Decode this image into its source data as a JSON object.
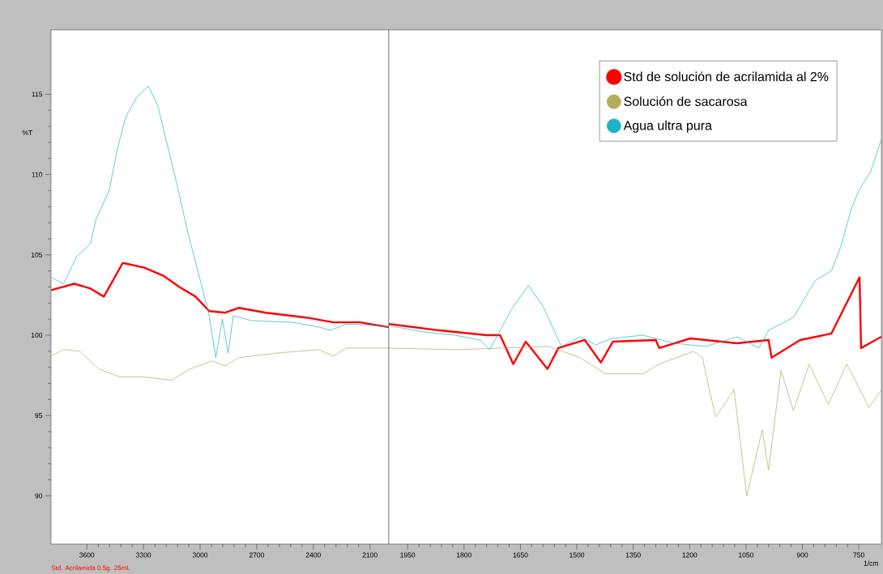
{
  "chart_data": [
    {
      "type": "line",
      "ylabel": "%T",
      "xlim": [
        3790,
        2000
      ],
      "xticks": [
        3600,
        3300,
        3000,
        2700,
        2400,
        2100
      ],
      "ylim": [
        87,
        119
      ],
      "yticks": [
        90,
        95,
        100,
        105,
        110,
        115
      ],
      "annotations": [
        "Std. Acrilamida 0.5g. 25mL"
      ],
      "series": [
        {
          "color": "#ff0000",
          "x": [
            3790,
            3667,
            3581,
            3510,
            3410,
            3295,
            3195,
            3110,
            3024,
            2952,
            2867,
            2796,
            2652,
            2438,
            2295,
            2154,
            2000
          ],
          "values": [
            102.8,
            103.2,
            102.9,
            102.4,
            104.5,
            104.2,
            103.7,
            103.0,
            102.4,
            101.5,
            101.4,
            101.7,
            101.4,
            101.1,
            100.8,
            100.8,
            100.5
          ]
        },
        {
          "color": "#b5ab5a",
          "x": [
            3790,
            3724,
            3638,
            3538,
            3424,
            3295,
            3152,
            3053,
            2938,
            2867,
            2796,
            2582,
            2368,
            2295,
            2224,
            2000
          ],
          "values": [
            98.7,
            99.1,
            99.0,
            97.9,
            97.4,
            97.4,
            97.2,
            97.9,
            98.4,
            98.1,
            98.6,
            98.9,
            99.1,
            98.7,
            99.2,
            99.2
          ]
        },
        {
          "color": "#1fb3c8",
          "x": [
            3790,
            3724,
            3654,
            3581,
            3552,
            3482,
            3440,
            3397,
            3337,
            3274,
            3225,
            3183,
            3123,
            3067,
            2995,
            2952,
            2917,
            2882,
            2852,
            2824,
            2724,
            2510,
            2368,
            2310,
            2224,
            2081,
            2000
          ],
          "values": [
            103.6,
            103.2,
            104.9,
            105.7,
            107.2,
            109.0,
            111.5,
            113.5,
            114.8,
            115.5,
            114.3,
            112.3,
            109.4,
            106.5,
            103.2,
            101.2,
            98.6,
            101.0,
            98.9,
            101.2,
            100.9,
            100.8,
            100.5,
            100.3,
            100.7,
            100.6,
            100.5
          ]
        }
      ]
    },
    {
      "type": "line",
      "xlabel": "1/cm",
      "xlim": [
        2000,
        690
      ],
      "xticks": [
        1950,
        1800,
        1650,
        1500,
        1350,
        1200,
        1050,
        900,
        750
      ],
      "ylim": [
        87,
        119
      ],
      "yticks": [
        90,
        95,
        100,
        105,
        110,
        115
      ],
      "tick_labels": "x",
      "legend": "top right",
      "series": [
        {
          "name": "Std de solución de acrilamida al 2%",
          "color": "#ff0000",
          "x": [
            2000,
            1866,
            1740,
            1704,
            1669,
            1636,
            1578,
            1549,
            1479,
            1436,
            1404,
            1290,
            1281,
            1198,
            1074,
            990,
            982,
            906,
            823,
            748,
            744,
            690
          ],
          "values": [
            100.7,
            100.3,
            100.0,
            100.0,
            98.2,
            99.6,
            97.9,
            99.2,
            99.7,
            98.3,
            99.6,
            99.7,
            99.2,
            99.8,
            99.5,
            99.7,
            98.6,
            99.7,
            100.1,
            103.6,
            99.2,
            99.9
          ]
        },
        {
          "name": "Solución de sacarosa",
          "color": "#b5ab5a",
          "x": [
            2000,
            1824,
            1699,
            1574,
            1491,
            1424,
            1324,
            1281,
            1190,
            1166,
            1131,
            1082,
            1048,
            1007,
            990,
            957,
            924,
            882,
            831,
            782,
            723,
            690
          ],
          "values": [
            99.2,
            99.1,
            99.2,
            99.3,
            98.6,
            97.6,
            97.6,
            98.2,
            99.0,
            98.6,
            94.9,
            96.6,
            90.0,
            94.1,
            91.6,
            97.8,
            95.3,
            98.2,
            95.7,
            98.2,
            95.5,
            96.6
          ]
        },
        {
          "name": "Agua ultra pura",
          "color": "#1fb3c8",
          "x": [
            2000,
            1907,
            1824,
            1757,
            1732,
            1708,
            1674,
            1629,
            1590,
            1541,
            1491,
            1449,
            1408,
            1324,
            1241,
            1157,
            1074,
            1016,
            990,
            924,
            866,
            823,
            798,
            771,
            750,
            718,
            690
          ],
          "values": [
            100.6,
            100.2,
            100.0,
            99.7,
            99.1,
            100.1,
            101.6,
            103.1,
            101.8,
            99.3,
            99.9,
            99.4,
            99.8,
            100.0,
            99.5,
            99.3,
            99.9,
            99.2,
            100.3,
            101.1,
            103.4,
            104.0,
            105.5,
            107.8,
            109.0,
            110.2,
            112.2
          ]
        }
      ]
    }
  ]
}
